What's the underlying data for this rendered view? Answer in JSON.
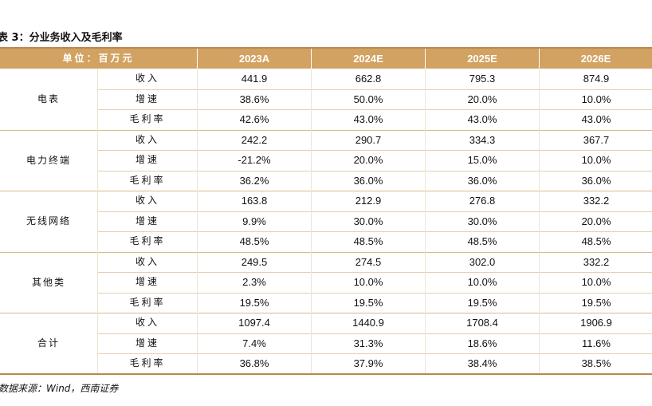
{
  "title": "表 3：分业务收入及毛利率",
  "header": {
    "unit": "单位：百万元",
    "years": [
      "2023A",
      "2024E",
      "2025E",
      "2026E"
    ]
  },
  "groups": [
    {
      "name": "电表",
      "rows": [
        {
          "metric": "收入",
          "values": [
            "441.9",
            "662.8",
            "795.3",
            "874.9"
          ]
        },
        {
          "metric": "增速",
          "values": [
            "38.6%",
            "50.0%",
            "20.0%",
            "10.0%"
          ]
        },
        {
          "metric": "毛利率",
          "values": [
            "42.6%",
            "43.0%",
            "43.0%",
            "43.0%"
          ]
        }
      ]
    },
    {
      "name": "电力终端",
      "rows": [
        {
          "metric": "收入",
          "values": [
            "242.2",
            "290.7",
            "334.3",
            "367.7"
          ]
        },
        {
          "metric": "增速",
          "values": [
            "-21.2%",
            "20.0%",
            "15.0%",
            "10.0%"
          ]
        },
        {
          "metric": "毛利率",
          "values": [
            "36.2%",
            "36.0%",
            "36.0%",
            "36.0%"
          ]
        }
      ]
    },
    {
      "name": "无线网络",
      "rows": [
        {
          "metric": "收入",
          "values": [
            "163.8",
            "212.9",
            "276.8",
            "332.2"
          ]
        },
        {
          "metric": "增速",
          "values": [
            "9.9%",
            "30.0%",
            "30.0%",
            "20.0%"
          ]
        },
        {
          "metric": "毛利率",
          "values": [
            "48.5%",
            "48.5%",
            "48.5%",
            "48.5%"
          ]
        }
      ]
    },
    {
      "name": "其他类",
      "rows": [
        {
          "metric": "收入",
          "values": [
            "249.5",
            "274.5",
            "302.0",
            "332.2"
          ]
        },
        {
          "metric": "增速",
          "values": [
            "2.3%",
            "10.0%",
            "10.0%",
            "10.0%"
          ]
        },
        {
          "metric": "毛利率",
          "values": [
            "19.5%",
            "19.5%",
            "19.5%",
            "19.5%"
          ]
        }
      ]
    },
    {
      "name": "合计",
      "rows": [
        {
          "metric": "收入",
          "values": [
            "1097.4",
            "1440.9",
            "1708.4",
            "1906.9"
          ]
        },
        {
          "metric": "增速",
          "values": [
            "7.4%",
            "31.3%",
            "18.6%",
            "11.6%"
          ]
        },
        {
          "metric": "毛利率",
          "values": [
            "36.8%",
            "37.9%",
            "38.4%",
            "38.5%"
          ]
        }
      ]
    }
  ],
  "source": "数据来源：Wind，西南证券",
  "colors": {
    "header_bg": "#d1a262",
    "rule": "#b8894a",
    "header_text": "#ffffff"
  }
}
